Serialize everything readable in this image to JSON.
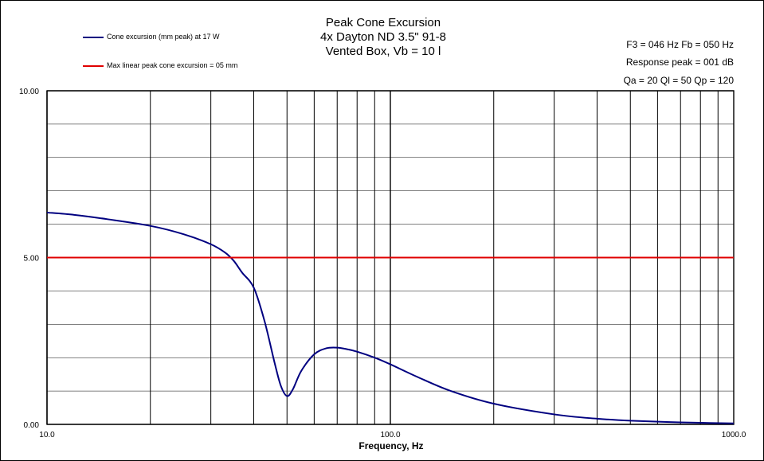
{
  "titles": {
    "line1": "Peak Cone Excursion",
    "line2": "4x Dayton ND 3.5\" 91-8",
    "line3": "Vented Box, Vb = 10 l"
  },
  "info": {
    "line1": "F3 = 046  Hz   Fb = 050  Hz",
    "line2": "Response peak = 001  dB",
    "line3": "Qa = 20   Ql = 50   Qp = 120"
  },
  "colors": {
    "curve": "#000080",
    "limit": "#e00000",
    "grid": "#000000",
    "background": "#ffffff"
  },
  "chart_data": {
    "type": "line",
    "title": "Peak Cone Excursion",
    "xlabel": "Frequency, Hz",
    "ylabel": "",
    "xscale": "log",
    "xlim": [
      10,
      1000
    ],
    "ylim": [
      0,
      10
    ],
    "xtick_labels": [
      "10.0",
      "100.0",
      "1000.0"
    ],
    "xtick_values": [
      10,
      100,
      1000
    ],
    "ytick_labels": [
      "0.00",
      "5.00",
      "10.00"
    ],
    "ytick_values": [
      0,
      5,
      10
    ],
    "grid": true,
    "legend_position": "top-left",
    "series": [
      {
        "name": "Cone excursion (mm peak) at 17 W",
        "color": "#000080",
        "x": [
          10,
          12,
          15,
          20,
          25,
          30,
          33,
          35,
          37,
          40,
          43,
          46,
          48,
          50,
          52,
          55,
          60,
          65,
          70,
          75,
          80,
          90,
          100,
          120,
          150,
          200,
          300,
          400,
          500,
          700,
          1000
        ],
        "y": [
          6.35,
          6.28,
          6.15,
          5.95,
          5.7,
          5.4,
          5.15,
          4.9,
          4.55,
          4.1,
          3.1,
          1.85,
          1.15,
          0.85,
          1.05,
          1.6,
          2.1,
          2.28,
          2.3,
          2.25,
          2.18,
          2.0,
          1.8,
          1.42,
          1.0,
          0.62,
          0.3,
          0.17,
          0.11,
          0.06,
          0.03
        ]
      },
      {
        "name": "Max linear peak cone excursion = 05 mm",
        "color": "#e00000",
        "x": [
          10,
          1000
        ],
        "y": [
          5,
          5
        ]
      }
    ]
  }
}
